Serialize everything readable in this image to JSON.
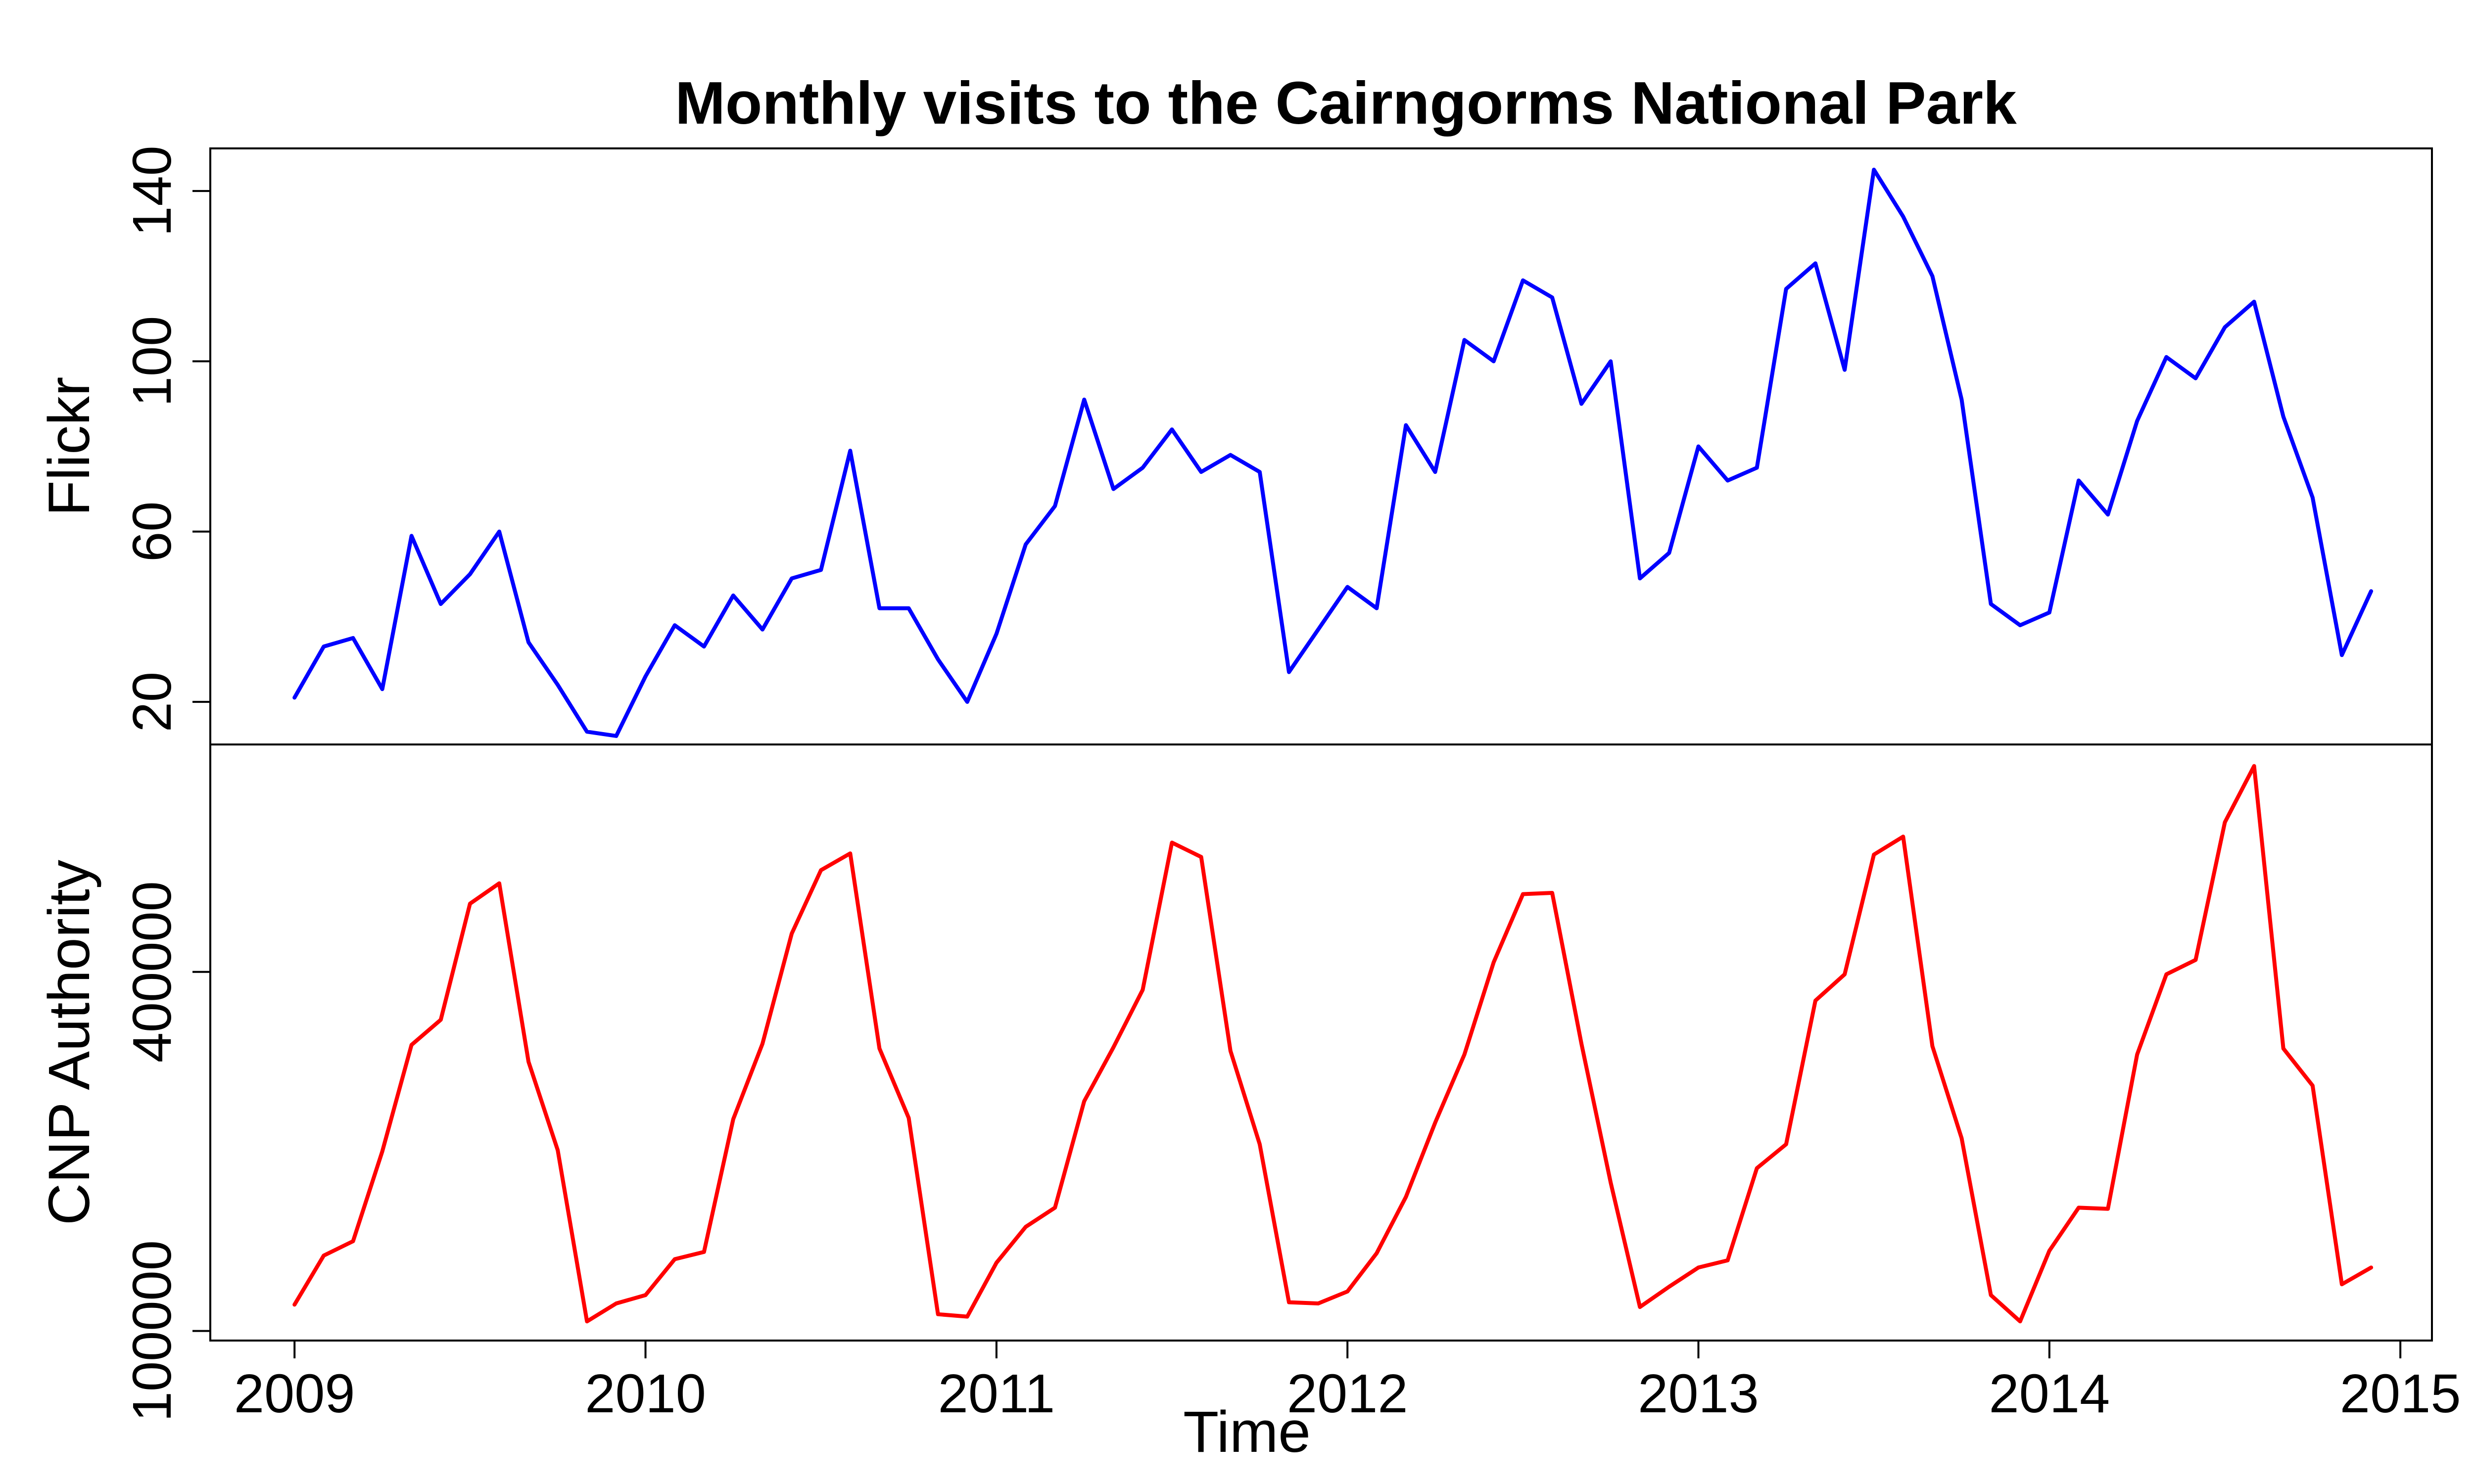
{
  "chart_data": {
    "type": "line",
    "title": "Monthly visits to the Cairngorms National Park",
    "xlabel": "Time",
    "x_ticks": [
      2009,
      2010,
      2011,
      2012,
      2013,
      2014,
      2015
    ],
    "xlim": [
      2008.76,
      2015.09
    ],
    "x_start": 2009,
    "x_step": 0.08333333,
    "grid": false,
    "legend": "none",
    "panels": [
      {
        "ylabel": "Flickr",
        "color": "#0000ff",
        "ylim": [
          10,
          150
        ],
        "y_ticks": [
          20,
          60,
          100,
          140
        ],
        "values": [
          21,
          33,
          35,
          23,
          59,
          43,
          50,
          60,
          34,
          24,
          13,
          12,
          26,
          38,
          33,
          45,
          37,
          49,
          51,
          79,
          42,
          42,
          30,
          20,
          36,
          57,
          66,
          91,
          70,
          75,
          84,
          74,
          78,
          74,
          27,
          37,
          47,
          42,
          85,
          74,
          105,
          100,
          119,
          115,
          90,
          100,
          49,
          55,
          80,
          72,
          75,
          117,
          123,
          98,
          145,
          134,
          120,
          91,
          43,
          38,
          41,
          72,
          64,
          86,
          101,
          96,
          108,
          114,
          87,
          68,
          31,
          46
        ]
      },
      {
        "ylabel": "CNP Authority",
        "color": "#ff0000",
        "ylim": [
          92000,
          590000
        ],
        "y_ticks": [
          100000,
          400000
        ],
        "values": [
          122000,
          163000,
          175000,
          250000,
          339000,
          360000,
          457000,
          474000,
          325000,
          251000,
          108000,
          123000,
          130000,
          160000,
          166000,
          277000,
          340000,
          432000,
          485000,
          499000,
          336000,
          278000,
          114000,
          112000,
          157000,
          187000,
          203000,
          292000,
          337000,
          385000,
          508000,
          496000,
          334000,
          256000,
          124000,
          123000,
          133000,
          165000,
          212000,
          274000,
          331000,
          408000,
          465000,
          466000,
          340000,
          224000,
          120000,
          137000,
          153000,
          159000,
          236000,
          256000,
          376000,
          398000,
          498000,
          513000,
          338000,
          261000,
          130000,
          108000,
          167000,
          203000,
          202000,
          331000,
          398000,
          410000,
          525000,
          572000,
          336000,
          305000,
          139000,
          153000
        ]
      }
    ]
  }
}
